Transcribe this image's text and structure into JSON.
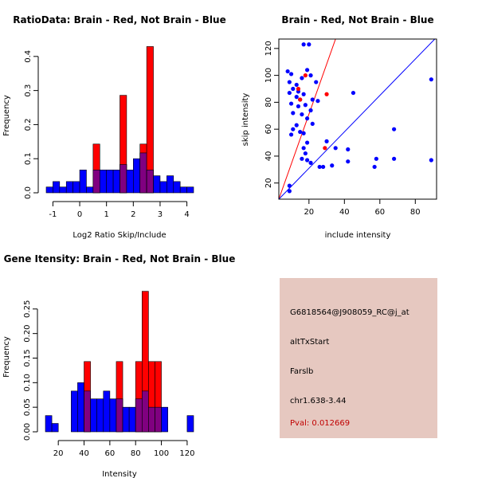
{
  "colors": {
    "brain": "#ff0000",
    "not_brain": "#0000ff",
    "overlap": "#800080",
    "panel_bg": "#e6c8c0",
    "pval_text": "#c00000"
  },
  "chart_data": [
    {
      "type": "bar",
      "kind": "histogram",
      "title": "RatioData: Brain - Red, Not Brain - Blue",
      "xlabel": "Log2 Ratio Skip/Include",
      "ylabel": "Frequency",
      "xlim": [
        -1.25,
        4.25
      ],
      "ylim": [
        0,
        0.43
      ],
      "xticks": [
        -1,
        0,
        1,
        2,
        3,
        4
      ],
      "yticks": [
        0.0,
        0.1,
        0.2,
        0.3,
        0.4
      ],
      "bin_starts": [
        -1.25,
        -1.0,
        -0.75,
        -0.5,
        -0.25,
        0.0,
        0.25,
        0.5,
        0.75,
        1.0,
        1.25,
        1.5,
        1.75,
        2.0,
        2.25,
        2.5,
        2.75,
        3.0,
        3.25,
        3.5,
        3.75,
        4.0
      ],
      "series": [
        {
          "name": "Not Brain",
          "color": "blue",
          "values": [
            0.017,
            0.033,
            0.017,
            0.033,
            0.033,
            0.067,
            0.017,
            0.067,
            0.067,
            0.067,
            0.067,
            0.083,
            0.067,
            0.1,
            0.117,
            0.067,
            0.05,
            0.033,
            0.05,
            0.033,
            0.017,
            0.017
          ]
        },
        {
          "name": "Brain",
          "color": "red",
          "values": [
            0,
            0,
            0,
            0,
            0,
            0,
            0,
            0.143,
            0,
            0,
            0,
            0.286,
            0,
            0,
            0.143,
            0.429,
            0,
            0,
            0,
            0,
            0,
            0
          ]
        }
      ]
    },
    {
      "type": "scatter",
      "title": "Brain - Red, Not Brain - Blue",
      "xlabel": "include intensity",
      "ylabel": "skip intensity",
      "xlim": [
        3,
        92
      ],
      "ylim": [
        8,
        127
      ],
      "xticks": [
        20,
        40,
        60,
        80
      ],
      "yticks": [
        20,
        40,
        60,
        80,
        100,
        120
      ],
      "lines": [
        {
          "name": "red line",
          "color": "red",
          "x": [
            3,
            35
          ],
          "y": [
            8,
            127
          ]
        },
        {
          "name": "blue line",
          "color": "blue",
          "x": [
            3,
            91
          ],
          "y": [
            8,
            127
          ]
        }
      ],
      "series": [
        {
          "name": "Not Brain",
          "color": "blue",
          "points": [
            [
              17,
              123
            ],
            [
              20,
              123
            ],
            [
              8,
              103
            ],
            [
              10,
              101
            ],
            [
              16,
              98
            ],
            [
              19,
              104
            ],
            [
              21,
              100
            ],
            [
              9,
              95
            ],
            [
              13,
              93
            ],
            [
              11,
              90
            ],
            [
              14,
              88
            ],
            [
              17,
              86
            ],
            [
              24,
              95
            ],
            [
              9,
              87
            ],
            [
              13,
              84
            ],
            [
              15,
              82
            ],
            [
              10,
              79
            ],
            [
              14,
              77
            ],
            [
              11,
              72
            ],
            [
              16,
              71
            ],
            [
              18,
              78
            ],
            [
              22,
              82
            ],
            [
              25,
              81
            ],
            [
              21,
              74
            ],
            [
              19,
              68
            ],
            [
              22,
              64
            ],
            [
              13,
              63
            ],
            [
              11,
              60
            ],
            [
              15,
              58
            ],
            [
              10,
              56
            ],
            [
              17,
              57
            ],
            [
              19,
              50
            ],
            [
              17,
              46
            ],
            [
              18,
              42
            ],
            [
              16,
              38
            ],
            [
              19,
              37
            ],
            [
              21,
              35
            ],
            [
              26,
              32
            ],
            [
              28,
              32
            ],
            [
              30,
              51
            ],
            [
              33,
              33
            ],
            [
              35,
              46
            ],
            [
              42,
              36
            ],
            [
              42,
              45
            ],
            [
              45,
              87
            ],
            [
              57,
              32
            ],
            [
              58,
              38
            ],
            [
              68,
              60
            ],
            [
              68,
              38
            ],
            [
              89,
              97
            ],
            [
              89,
              37
            ],
            [
              9,
              18
            ],
            [
              9,
              14
            ]
          ]
        },
        {
          "name": "Brain",
          "color": "red",
          "points": [
            [
              14,
              90
            ],
            [
              15,
              82
            ],
            [
              18,
              100
            ],
            [
              30,
              86
            ],
            [
              29,
              46
            ]
          ]
        }
      ]
    },
    {
      "type": "bar",
      "kind": "histogram",
      "title": "Gene Itensity: Brain - Red, Not Brain - Blue",
      "xlabel": "Intensity",
      "ylabel": "Frequency",
      "xlim": [
        10,
        125
      ],
      "ylim": [
        0,
        0.3
      ],
      "xticks": [
        20,
        40,
        60,
        80,
        100,
        120
      ],
      "yticks": [
        0.0,
        0.05,
        0.1,
        0.15,
        0.2,
        0.25
      ],
      "bin_starts": [
        10,
        15,
        20,
        25,
        30,
        35,
        40,
        45,
        50,
        55,
        60,
        65,
        70,
        75,
        80,
        85,
        90,
        95,
        100,
        105,
        110,
        115,
        120
      ],
      "series": [
        {
          "name": "Not Brain",
          "color": "blue",
          "values": [
            0.033,
            0.017,
            0,
            0,
            0.083,
            0.1,
            0.083,
            0.067,
            0.067,
            0.083,
            0.067,
            0.067,
            0.05,
            0.05,
            0.067,
            0.083,
            0.05,
            0.05,
            0.05,
            0,
            0,
            0,
            0.033
          ]
        },
        {
          "name": "Brain",
          "color": "red",
          "values": [
            0,
            0,
            0,
            0,
            0,
            0,
            0.143,
            0,
            0,
            0,
            0,
            0.143,
            0,
            0,
            0.143,
            0.286,
            0.143,
            0.143,
            0,
            0,
            0,
            0,
            0
          ]
        }
      ]
    }
  ],
  "info": {
    "probe_id": "G6818564@J908059_RC@j_at",
    "event_type": "altTxStart",
    "gene": "Farslb",
    "location": "chr1.638-3.44",
    "pval": "Pval: 0.012669"
  }
}
